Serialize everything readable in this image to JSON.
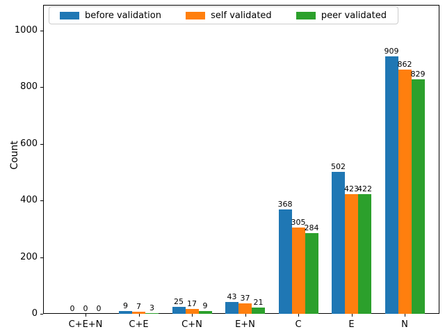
{
  "figure": {
    "background": "#ffffff"
  },
  "chart_data": {
    "type": "bar",
    "title": "",
    "xlabel": "",
    "ylabel": "Count",
    "categories": [
      "C+E+N",
      "C+E",
      "C+N",
      "E+N",
      "C",
      "E",
      "N"
    ],
    "series": [
      {
        "name": "before validation",
        "color": "#1f77b4",
        "values": [
          0,
          9,
          25,
          43,
          368,
          502,
          909
        ]
      },
      {
        "name": "self validated",
        "color": "#ff7f0e",
        "values": [
          0,
          7,
          17,
          37,
          305,
          423,
          862
        ]
      },
      {
        "name": "peer validated",
        "color": "#2ca02c",
        "values": [
          0,
          3,
          9,
          21,
          284,
          422,
          829
        ]
      }
    ],
    "bar_value_labels": true,
    "yticks": [
      0,
      200,
      400,
      600,
      800,
      1000
    ],
    "ylim": [
      0,
      1091
    ],
    "grid": "off",
    "legend_position": "top inside plot, horizontal"
  }
}
